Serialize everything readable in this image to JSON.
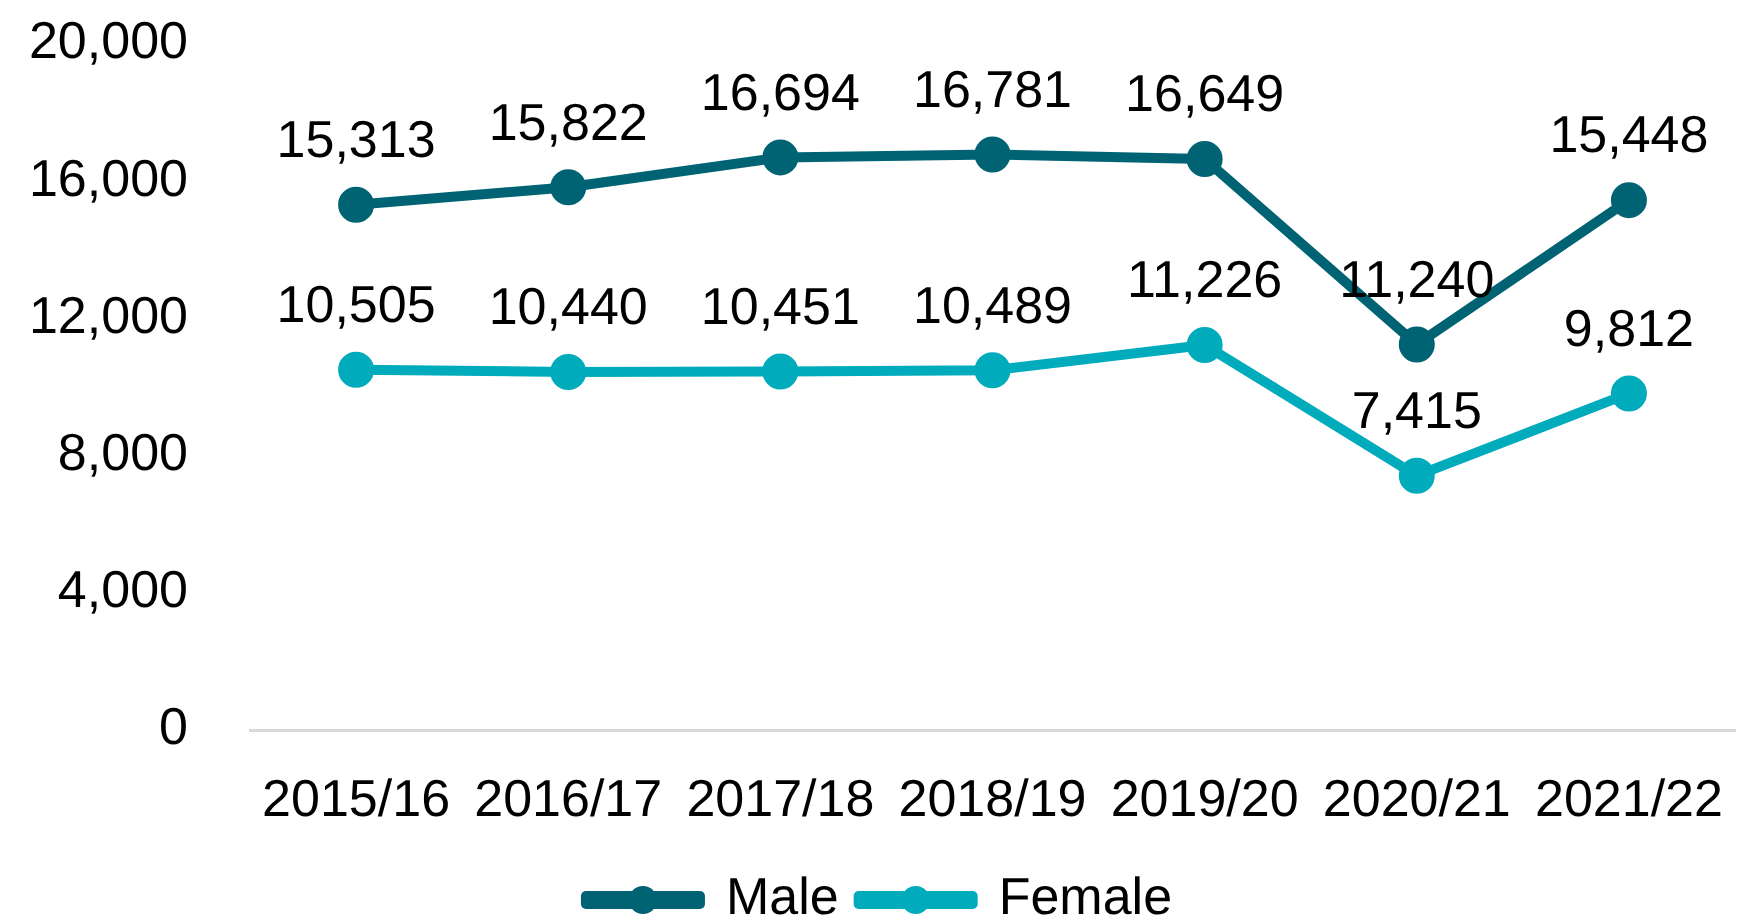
{
  "chart_data": {
    "type": "line",
    "categories": [
      "2015/16",
      "2016/17",
      "2017/18",
      "2018/19",
      "2019/20",
      "2020/21",
      "2021/22"
    ],
    "series": [
      {
        "name": "Male",
        "color": "#006373",
        "values": [
          15313,
          15822,
          16694,
          16781,
          16649,
          11240,
          15448
        ],
        "value_labels": [
          "15,313",
          "15,822",
          "16,694",
          "16,781",
          "16,649",
          "11,240",
          "15,448"
        ]
      },
      {
        "name": "Female",
        "color": "#00abbb",
        "values": [
          10505,
          10440,
          10451,
          10489,
          11226,
          7415,
          9812
        ],
        "value_labels": [
          "10,505",
          "10,440",
          "10,451",
          "10,489",
          "11,226",
          "7,415",
          "9,812"
        ]
      }
    ],
    "ylim": [
      0,
      20000
    ],
    "yticks": [
      {
        "value": 0,
        "label": "0"
      },
      {
        "value": 4000,
        "label": "4,000"
      },
      {
        "value": 8000,
        "label": "8,000"
      },
      {
        "value": 12000,
        "label": "12,000"
      },
      {
        "value": 16000,
        "label": "16,000"
      },
      {
        "value": 20000,
        "label": "20,000"
      }
    ],
    "legend": "bottom",
    "marker": "circle",
    "line_style": "solid",
    "grid": false
  }
}
